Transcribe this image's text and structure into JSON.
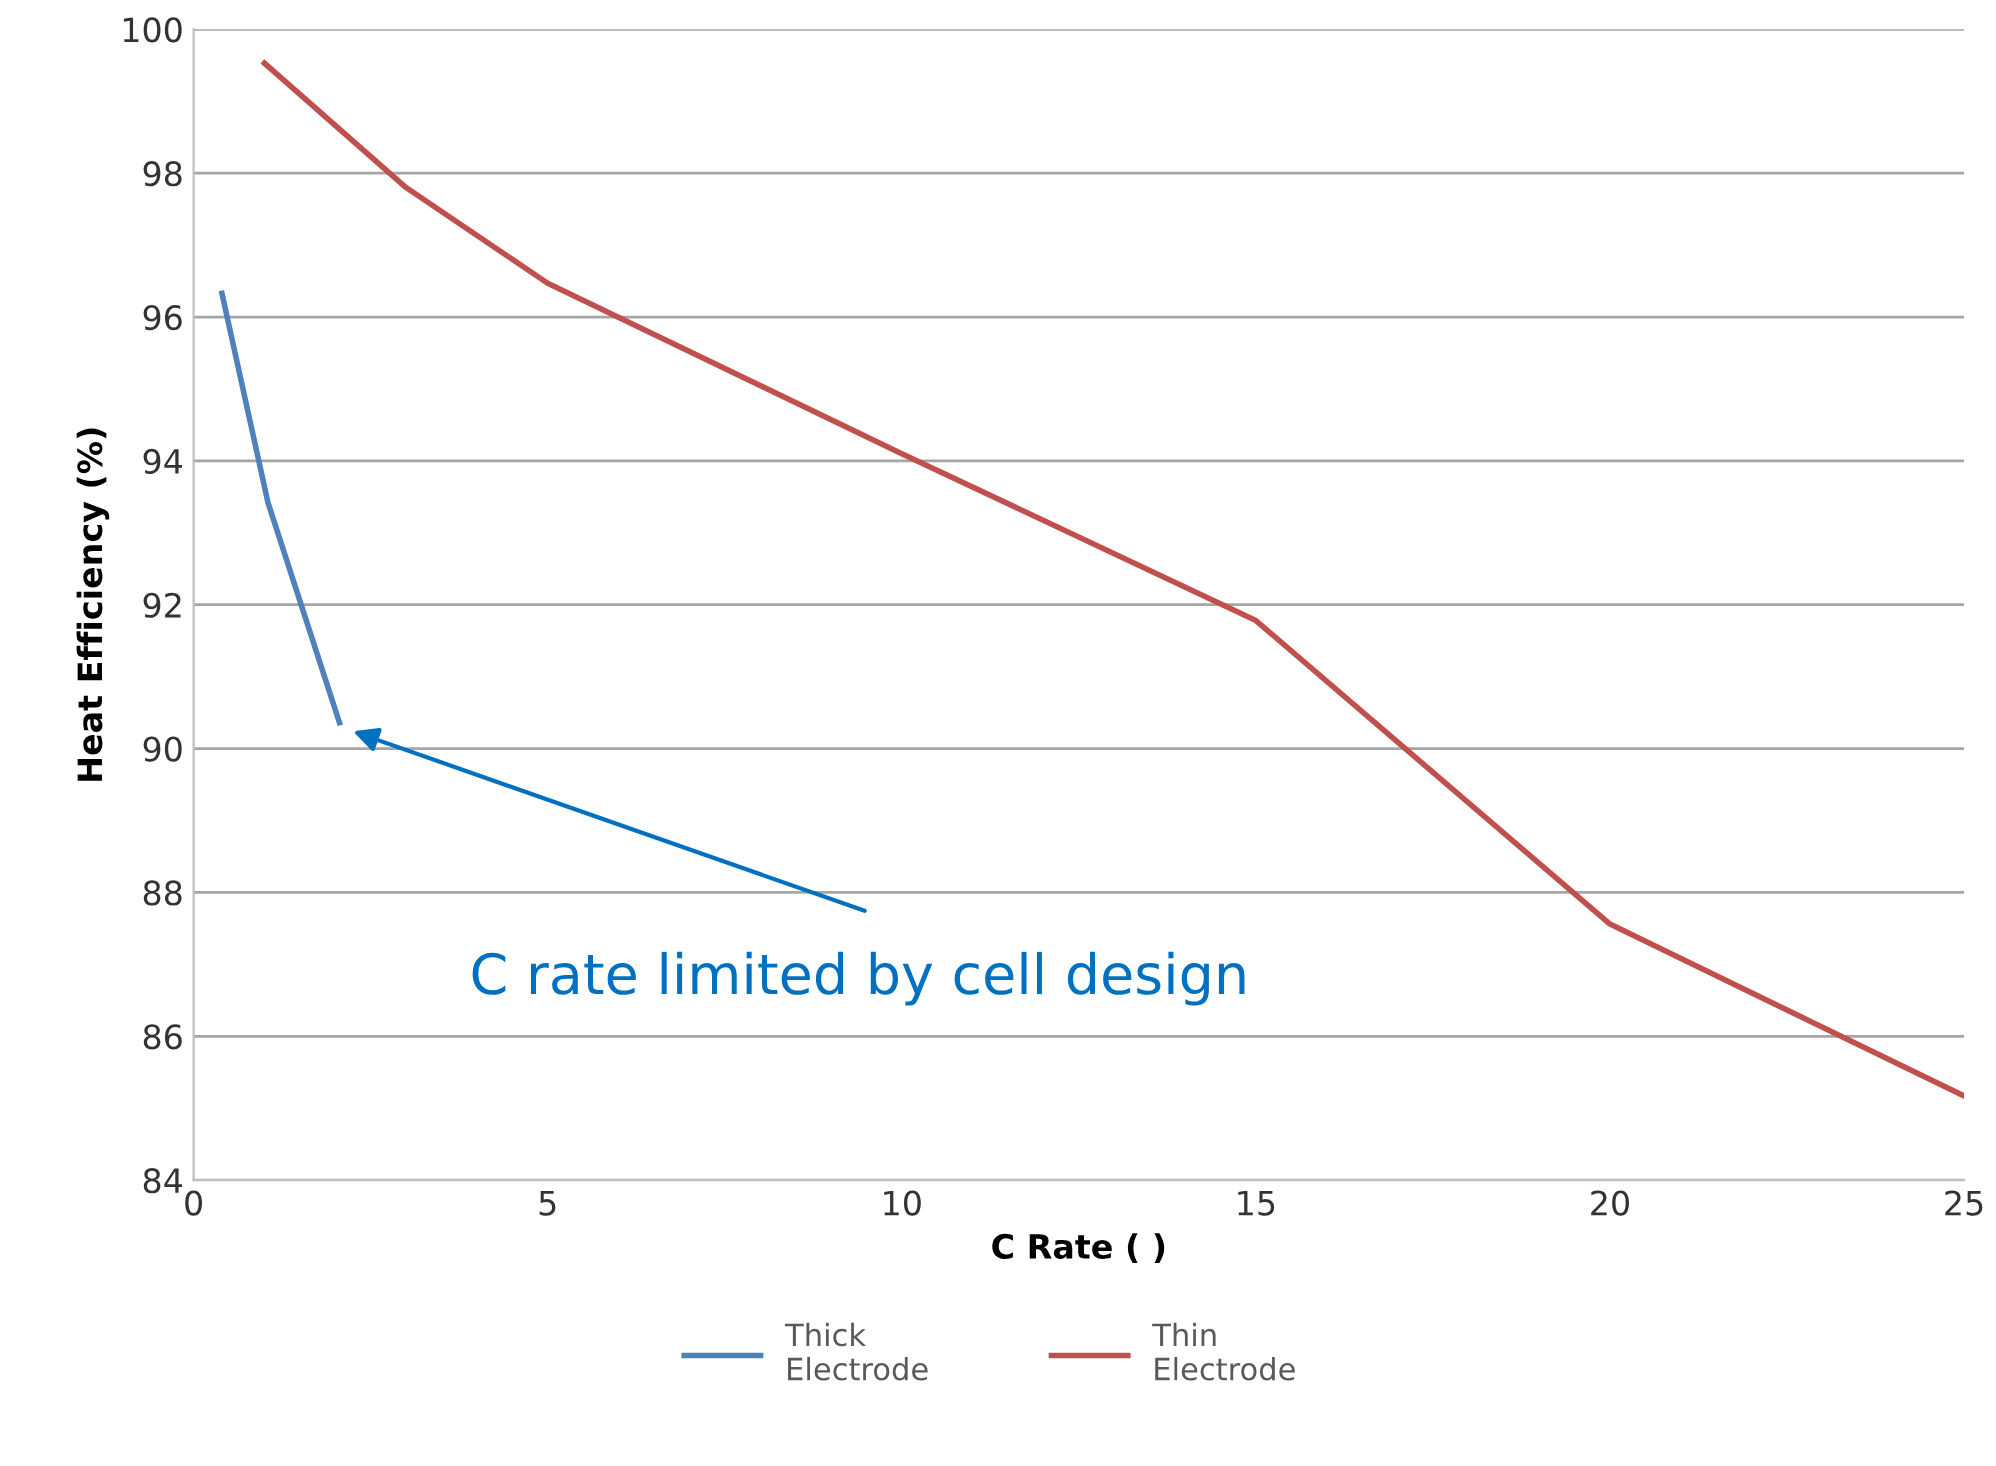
{
  "chart_data": {
    "type": "line",
    "xlabel": "C Rate ( )",
    "ylabel": "Heat Efficiency (%)",
    "xlim": [
      0,
      25
    ],
    "xticks": [
      0,
      5,
      10,
      15,
      20,
      25
    ],
    "ylim": [
      84,
      100
    ],
    "yticks": [
      84,
      86,
      88,
      90,
      92,
      94,
      96,
      98,
      100
    ],
    "grid": "y",
    "legend": "bottom",
    "marker": "none",
    "line_style": "solid",
    "series": [
      {
        "name": "Thick Electrode",
        "color": "#4f81bd",
        "x": [
          0.4,
          1.05,
          2.06
        ],
        "values": [
          96.33,
          93.42,
          90.36
        ]
      },
      {
        "name": "Thin Electrode",
        "color": "#c0504d",
        "x": [
          1,
          3,
          5,
          10,
          15,
          20,
          25
        ],
        "values": [
          99.53,
          97.8,
          96.47,
          94.1,
          91.78,
          87.56,
          85.17
        ]
      }
    ],
    "annotations": [
      "C rate limited by cell design"
    ]
  }
}
